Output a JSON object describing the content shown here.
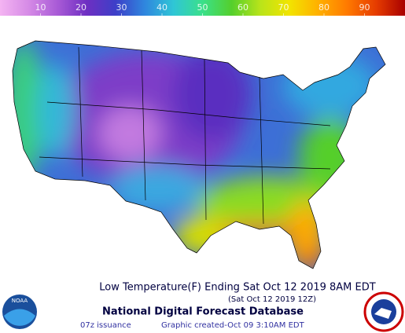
{
  "legend": {
    "range": [
      0,
      100
    ],
    "ticks": [
      10,
      20,
      30,
      40,
      50,
      60,
      70,
      80,
      90
    ],
    "colors": [
      "#f4b4f2",
      "#d58ae6",
      "#a85ad6",
      "#6e2fc2",
      "#3d3fc8",
      "#2f86de",
      "#2fc6d6",
      "#3ae08a",
      "#54cf2c",
      "#b9e41a",
      "#f2e400",
      "#ffb000",
      "#ff7a00",
      "#e63c00",
      "#a80000"
    ]
  },
  "map": {
    "title": "Low Temperature(F) Ending Sat Oct 12 2019  8AM EDT",
    "valid": "(Sat Oct 12 2019 12Z)"
  },
  "footer": {
    "name": "National Digital Forecast Database",
    "issuance": "07z issuance",
    "created": "Graphic created-Oct 09  3:10AM EDT"
  },
  "logos": {
    "left": "NOAA"
  }
}
